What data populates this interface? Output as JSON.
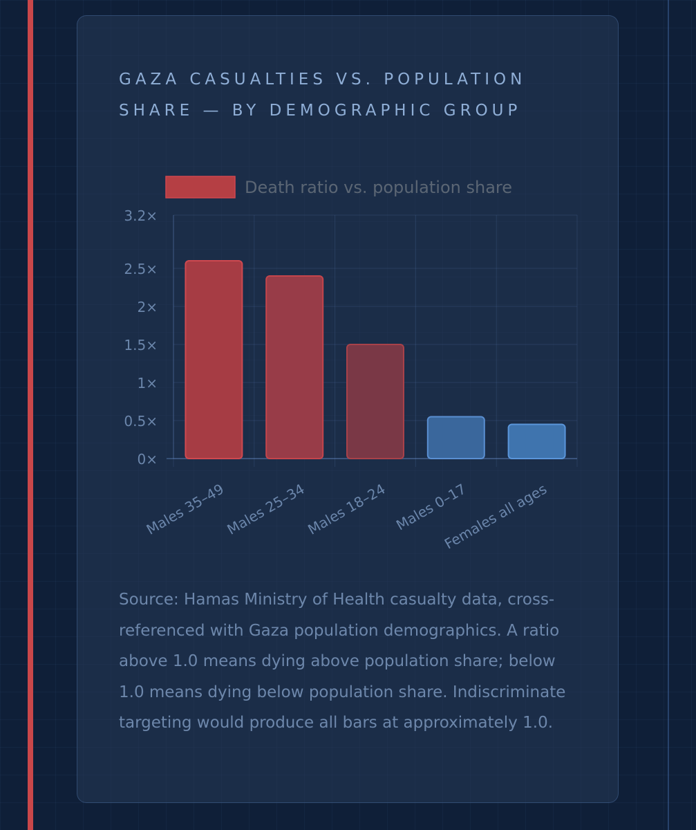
{
  "card": {
    "title": "GAZA CASUALTIES VS. POPULATION SHARE — BY DEMOGRAPHIC GROUP",
    "source_note": "Source: Hamas Ministry of Health casualty data, cross-referenced with Gaza population demographics. A ratio above 1.0 means dying above population share; below 1.0 means dying below population share. Indiscriminate targeting would produce all bars at approximately 1.0."
  },
  "chart_data": {
    "type": "bar",
    "title": "GAZA CASUALTIES VS. POPULATION SHARE — BY DEMOGRAPHIC GROUP",
    "legend": {
      "label": "Death ratio vs. population share",
      "placement": "top"
    },
    "categories": [
      "Males 35–49",
      "Males 25–34",
      "Males 18–24",
      "Males 0–17",
      "Females all ages"
    ],
    "series": [
      {
        "name": "Death ratio vs. population share",
        "values": [
          2.6,
          2.4,
          1.5,
          0.55,
          0.45
        ]
      }
    ],
    "bar_colors": [
      "#a63c44",
      "#983c48",
      "#7a3846",
      "#3a679c",
      "#3f74ae"
    ],
    "bar_border_colors": [
      "#cf4950",
      "#c4454c",
      "#a8424a",
      "#5a8fd2",
      "#5a95da"
    ],
    "legend_color": "#b53f44",
    "yticks": [
      {
        "value": 0,
        "label": "0×"
      },
      {
        "value": 0.5,
        "label": "0.5×"
      },
      {
        "value": 1,
        "label": "1×"
      },
      {
        "value": 1.5,
        "label": "1.5×"
      },
      {
        "value": 2,
        "label": "2×"
      },
      {
        "value": 2.5,
        "label": "2.5×"
      },
      {
        "value": 3.2,
        "label": "3.2×"
      }
    ],
    "ylim": [
      0,
      3.2
    ],
    "grid": true,
    "xlabel": "",
    "ylabel": ""
  }
}
